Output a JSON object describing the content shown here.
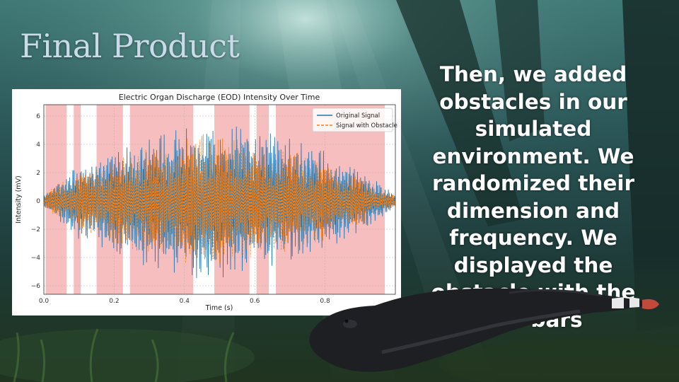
{
  "slide": {
    "title": "Final Product",
    "body": "Then, we added obstacles in our simulated environment. We randomized their dimension and frequency. We displayed the obstacle with the red bars"
  },
  "colors": {
    "original_signal": "#1f77b4",
    "obstacle_signal": "#ff7f0e",
    "obstacle_bar": "#f4b3b3",
    "title_text": "#c9dbe6",
    "body_text": "#ffffff"
  },
  "icons": [
    "fish-image",
    "underwater-background"
  ],
  "chart_data": {
    "type": "line",
    "title": "Electric Organ Discharge (EOD) Intensity Over Time",
    "xlabel": "Time (s)",
    "ylabel": "Intensity (mV)",
    "xlim": [
      0.0,
      1.0
    ],
    "ylim": [
      -6.6,
      6.8
    ],
    "x_ticks": [
      0.0,
      0.2,
      0.4,
      0.6,
      0.8
    ],
    "x_tick_labels": [
      "0.0",
      "0.2",
      "0.4",
      "0.6",
      "0.8"
    ],
    "y_ticks": [
      6,
      4,
      2,
      0,
      -2,
      -4,
      -6
    ],
    "y_tick_labels": [
      "6",
      "4",
      "2",
      "0",
      "−2",
      "−4",
      "−6"
    ],
    "grid": true,
    "legend_position": "top-right",
    "series": [
      {
        "name": "Original Signal",
        "style": "solid",
        "envelope_t": [
          0.0,
          0.1,
          0.2,
          0.3,
          0.4,
          0.45,
          0.5,
          0.55,
          0.6,
          0.7,
          0.8,
          0.9,
          1.0
        ],
        "envelope_amplitude": [
          0.6,
          2.8,
          3.9,
          4.8,
          5.6,
          5.9,
          5.8,
          5.5,
          5.1,
          4.5,
          3.6,
          2.2,
          0.5
        ]
      },
      {
        "name": "Signal with Obstacle",
        "style": "dashed",
        "envelope_t": [
          0.0,
          0.1,
          0.2,
          0.3,
          0.4,
          0.45,
          0.5,
          0.55,
          0.6,
          0.7,
          0.8,
          0.9,
          1.0
        ],
        "envelope_amplitude": [
          0.5,
          2.2,
          3.1,
          3.9,
          4.6,
          5.3,
          5.0,
          4.7,
          4.3,
          3.6,
          2.9,
          1.8,
          0.4
        ]
      }
    ],
    "obstacle_intervals": [
      [
        0.005,
        0.065
      ],
      [
        0.085,
        0.105
      ],
      [
        0.15,
        0.225
      ],
      [
        0.245,
        0.425
      ],
      [
        0.485,
        0.585
      ],
      [
        0.605,
        0.64
      ],
      [
        0.66,
        0.97
      ]
    ]
  }
}
